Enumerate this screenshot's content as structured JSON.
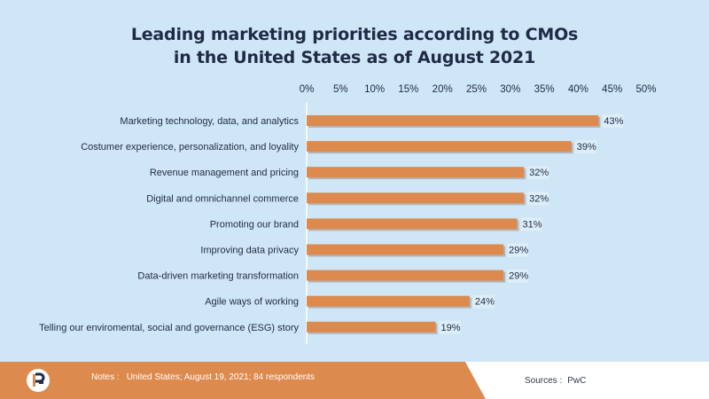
{
  "title": {
    "line1": "Leading marketing priorities according to CMOs",
    "line2": "in the United States as of August 2021"
  },
  "chart_data": {
    "type": "bar",
    "orientation": "horizontal",
    "categories": [
      "Marketing technology, data, and analytics",
      "Costumer experience, personalization, and loyality",
      "Revenue management and pricing",
      "Digital and omnichannel commerce",
      "Promoting our brand",
      "Improving data privacy",
      "Data-driven marketing transformation",
      "Agile ways of working",
      "Telling our enviromental, social and governance (ESG) story"
    ],
    "values": [
      43,
      39,
      32,
      32,
      31,
      29,
      29,
      24,
      19
    ],
    "value_labels": [
      "43%",
      "39%",
      "32%",
      "32%",
      "31%",
      "29%",
      "29%",
      "24%",
      "19%"
    ],
    "xlim": [
      0,
      50
    ],
    "xticks": [
      "0%",
      "5%",
      "10%",
      "15%",
      "20%",
      "25%",
      "30%",
      "35%",
      "40%",
      "45%",
      "50%"
    ],
    "x_axis_position": "top",
    "grid": false,
    "legend": "none",
    "colors": {
      "bar": "#dd8a4e",
      "bar_shadow": "#b1b6bb",
      "label_bg": "#ddeef9",
      "text": "#1f2a44"
    }
  },
  "footer": {
    "notes_label": "Notes :",
    "notes_text": "United States; August 19, 2021; 84 respondents",
    "sources_label": "Sources :",
    "sources_text": "PwC",
    "colors": {
      "orange": "#dd8a4e",
      "white": "#ffffff"
    }
  }
}
